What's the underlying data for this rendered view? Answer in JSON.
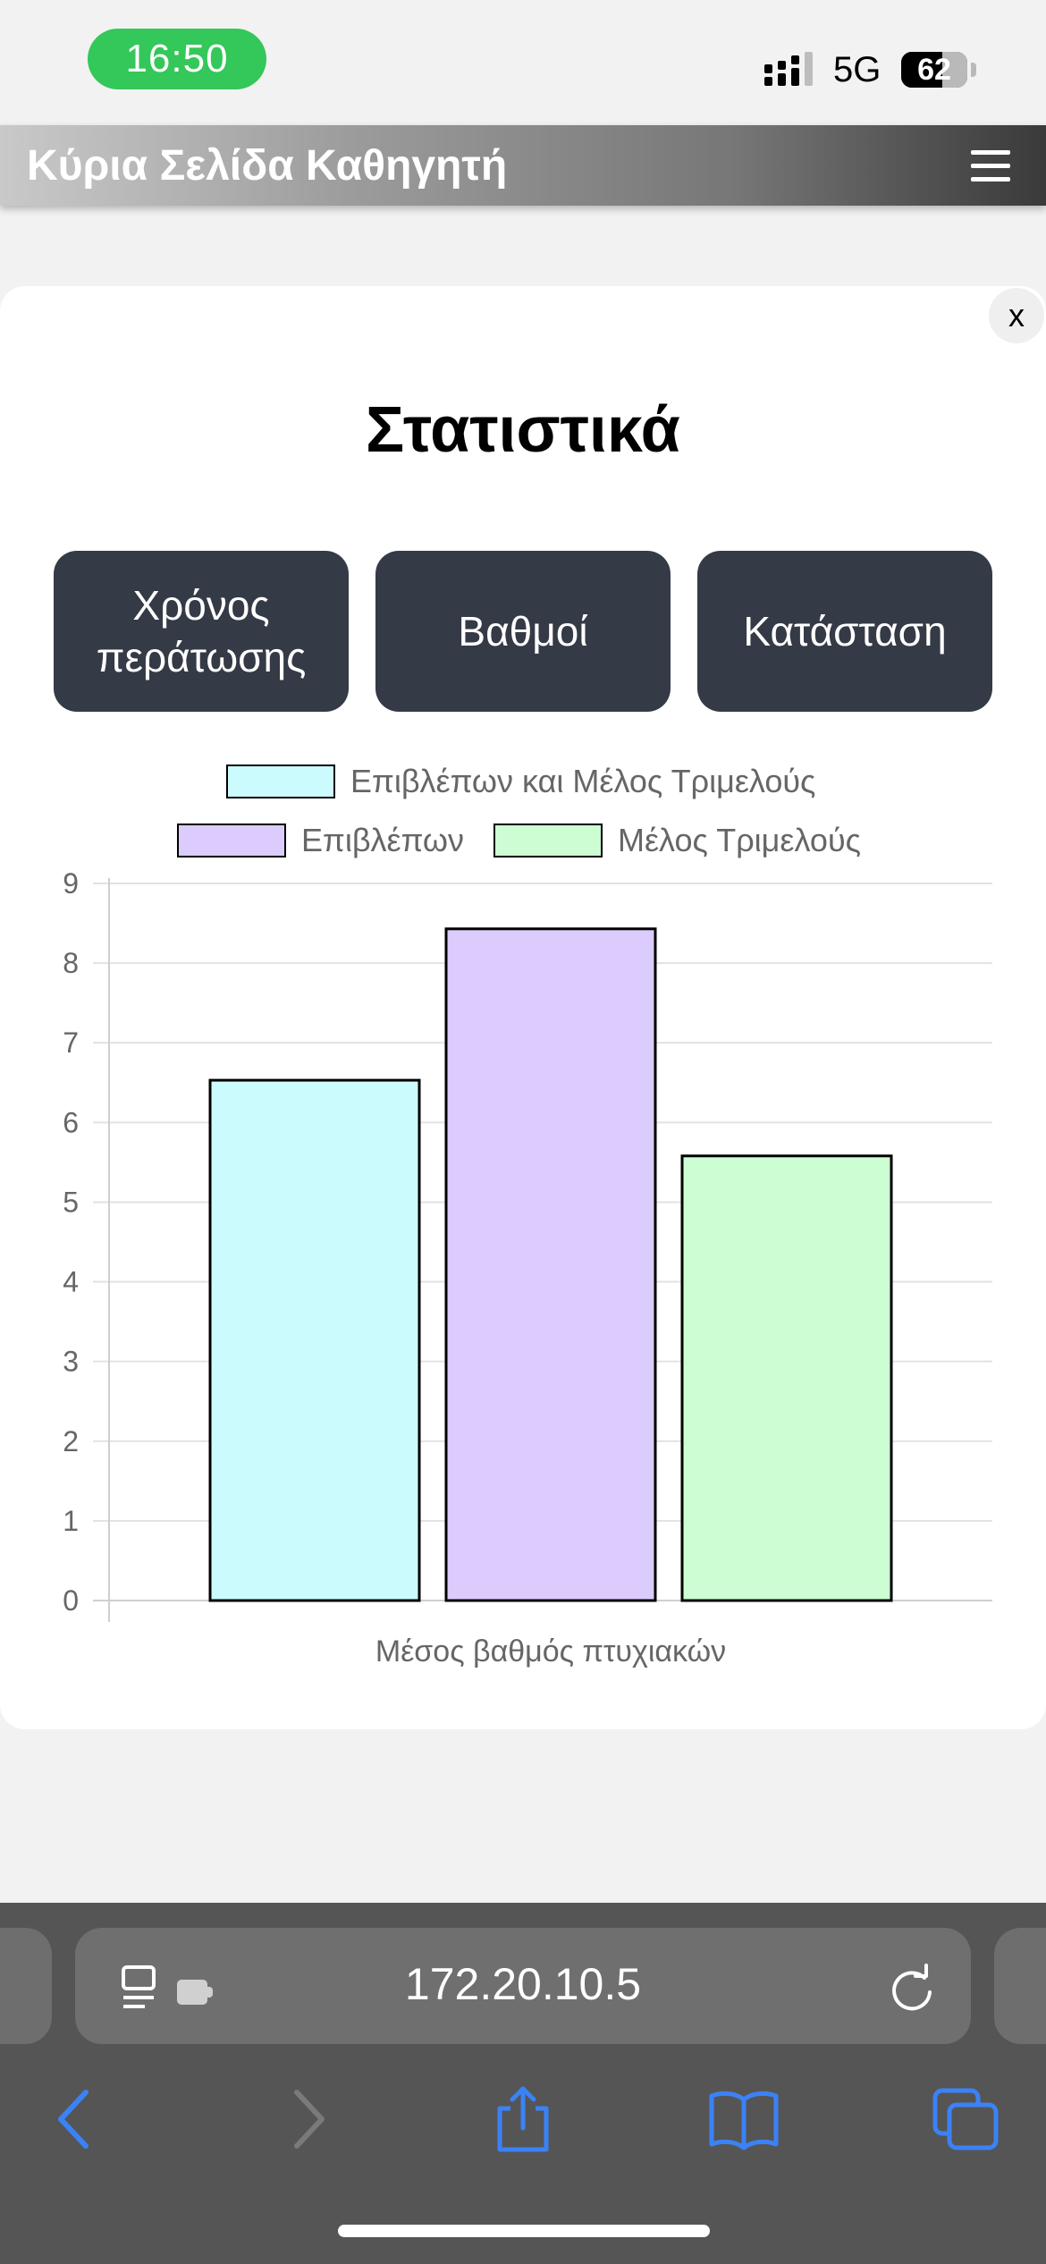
{
  "status_bar": {
    "time": "16:50",
    "network": "5G",
    "battery": "62",
    "battery_level": 0.62
  },
  "header": {
    "title": "Κύρια Σελίδα Καθηγητή"
  },
  "modal": {
    "close_label": "x",
    "title": "Στατιστικά",
    "tabs": [
      {
        "label": "Χρόνος περάτωσης"
      },
      {
        "label": "Βαθμοί"
      },
      {
        "label": "Κατάσταση"
      }
    ]
  },
  "chart_data": {
    "type": "bar",
    "categories": [
      "Μέσος βαθμός πτυχιακών"
    ],
    "series": [
      {
        "name": "Επιβλέπων και Μέλος Τριμελούς",
        "values": [
          6.53
        ],
        "color": "#ccfbfd"
      },
      {
        "name": "Επιβλέπων",
        "values": [
          8.43
        ],
        "color": "#dccbfd"
      },
      {
        "name": "Μέλος Τριμελούς",
        "values": [
          5.58
        ],
        "color": "#ccfdd3"
      }
    ],
    "ylim": [
      0,
      9
    ],
    "yticks": [
      0,
      1,
      2,
      3,
      4,
      5,
      6,
      7,
      8,
      9
    ],
    "grid": true,
    "legend": "top"
  },
  "browser": {
    "url": "172.20.10.5"
  },
  "icons": {
    "menu": "hamburger-menu-icon",
    "page_settings": "page-settings-icon",
    "reload": "reload-icon",
    "back": "back-arrow-icon",
    "forward": "forward-arrow-icon",
    "share": "share-icon",
    "bookmarks": "book-icon",
    "tabs": "tabs-icon"
  },
  "colors": {
    "tab_bg": "#343a46",
    "time_pill": "#34c759",
    "browser_accent": "#3b82f6"
  }
}
